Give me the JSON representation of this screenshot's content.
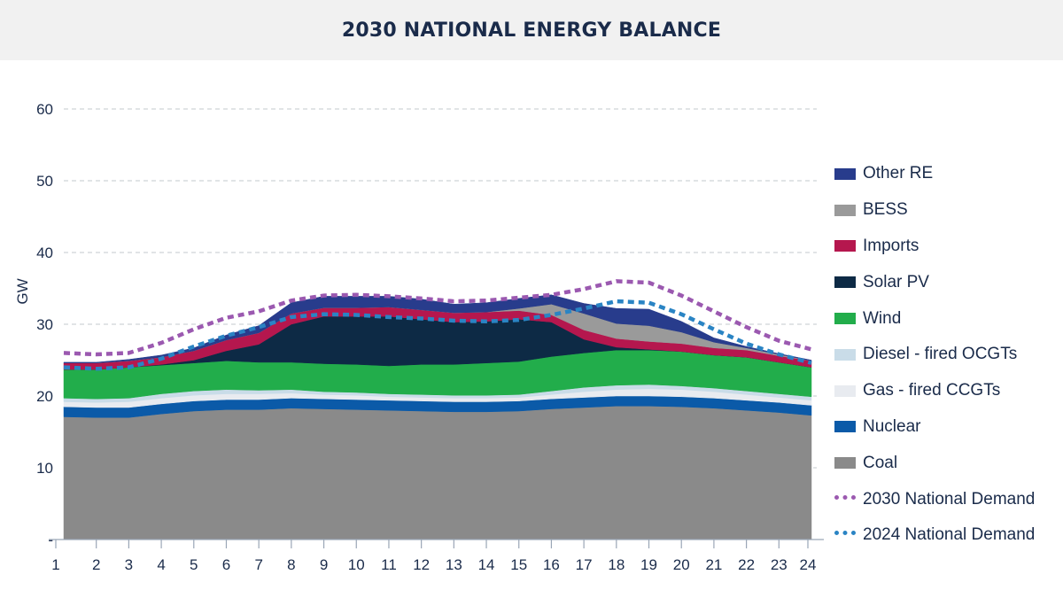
{
  "header": {
    "title": "2030 NATIONAL ENERGY BALANCE"
  },
  "chart_data": {
    "type": "area",
    "title": "2030 NATIONAL ENERGY BALANCE",
    "ylabel": "GW",
    "xlabel": "",
    "ylim": [
      0,
      60
    ],
    "yticks": [
      0,
      10,
      20,
      30,
      40,
      50,
      60
    ],
    "ytick_labels": [
      "-",
      "10",
      "20",
      "30",
      "40",
      "50",
      "60"
    ],
    "grid": true,
    "legend_position": "right",
    "x": [
      1,
      2,
      3,
      4,
      5,
      6,
      7,
      8,
      9,
      10,
      11,
      12,
      13,
      14,
      15,
      16,
      17,
      18,
      19,
      20,
      21,
      22,
      23,
      24
    ],
    "stacked_series": [
      {
        "name": "Coal",
        "color": "#8a8a8a",
        "values": [
          17.1,
          17.0,
          17.0,
          17.5,
          17.9,
          18.1,
          18.1,
          18.3,
          18.2,
          18.1,
          18.0,
          17.9,
          17.8,
          17.8,
          17.9,
          18.2,
          18.4,
          18.6,
          18.6,
          18.5,
          18.3,
          18.0,
          17.7,
          17.3
        ]
      },
      {
        "name": "Nuclear",
        "color": "#0b5aa8",
        "values": [
          1.4,
          1.4,
          1.4,
          1.4,
          1.4,
          1.4,
          1.4,
          1.4,
          1.4,
          1.4,
          1.4,
          1.4,
          1.4,
          1.4,
          1.4,
          1.4,
          1.4,
          1.4,
          1.4,
          1.4,
          1.4,
          1.4,
          1.4,
          1.4
        ]
      },
      {
        "name": "Gas - fired CCGTs",
        "color": "#e8ebf0",
        "values": [
          0.7,
          0.7,
          0.8,
          0.8,
          0.8,
          0.8,
          0.8,
          0.7,
          0.6,
          0.6,
          0.5,
          0.5,
          0.5,
          0.5,
          0.5,
          0.6,
          0.8,
          0.9,
          1.0,
          1.0,
          0.9,
          0.8,
          0.7,
          0.7
        ]
      },
      {
        "name": "Diesel - fired OCGTs",
        "color": "#c9dce8",
        "values": [
          0.5,
          0.5,
          0.5,
          0.6,
          0.6,
          0.6,
          0.5,
          0.5,
          0.4,
          0.4,
          0.4,
          0.4,
          0.4,
          0.4,
          0.4,
          0.5,
          0.6,
          0.6,
          0.6,
          0.5,
          0.5,
          0.5,
          0.5,
          0.5
        ]
      },
      {
        "name": "Wind",
        "color": "#22ad4b",
        "values": [
          4.0,
          4.1,
          4.3,
          4.0,
          3.9,
          4.0,
          3.9,
          3.8,
          3.9,
          3.9,
          3.9,
          4.2,
          4.3,
          4.5,
          4.6,
          4.8,
          4.8,
          4.9,
          4.8,
          4.8,
          4.6,
          4.7,
          4.4,
          4.1
        ]
      },
      {
        "name": "Solar PV",
        "color": "#0d2a45",
        "values": [
          0.0,
          0.0,
          0.0,
          0.1,
          0.4,
          1.4,
          2.5,
          5.3,
          6.6,
          6.7,
          6.9,
          6.3,
          5.9,
          5.8,
          5.9,
          4.8,
          1.9,
          0.4,
          0.1,
          0.0,
          0.0,
          0.0,
          0.0,
          0.0
        ]
      },
      {
        "name": "Imports",
        "color": "#b5174e",
        "values": [
          0.9,
          0.9,
          0.9,
          1.0,
          1.3,
          1.5,
          1.6,
          1.5,
          1.2,
          1.2,
          1.3,
          1.3,
          1.3,
          1.3,
          1.2,
          1.0,
          1.3,
          1.2,
          1.1,
          1.1,
          1.0,
          1.0,
          0.9,
          0.9
        ]
      },
      {
        "name": "BESS",
        "color": "#9a9a9a",
        "values": [
          0.0,
          0.0,
          0.0,
          0.0,
          0.0,
          0.0,
          0.0,
          0.0,
          0.0,
          0.0,
          0.0,
          0.0,
          0.0,
          0.0,
          0.3,
          1.5,
          2.3,
          2.1,
          2.2,
          1.6,
          0.8,
          0.3,
          0.2,
          0.0
        ]
      },
      {
        "name": "Other RE",
        "color": "#283c8c",
        "values": [
          0.1,
          0.1,
          0.2,
          0.3,
          0.4,
          0.7,
          1.0,
          1.5,
          1.6,
          1.6,
          1.5,
          1.5,
          1.2,
          1.3,
          1.4,
          1.3,
          1.4,
          2.1,
          2.3,
          1.5,
          0.6,
          0.2,
          0.1,
          0.1
        ]
      }
    ],
    "line_series": [
      {
        "name": "2030 National Demand",
        "color": "#9b59b0",
        "values": [
          26.0,
          25.8,
          26.0,
          27.4,
          29.3,
          30.9,
          31.8,
          33.3,
          34.0,
          34.1,
          33.9,
          33.6,
          33.2,
          33.3,
          33.7,
          34.1,
          34.9,
          36.0,
          35.8,
          34.0,
          31.8,
          29.6,
          27.7,
          26.5
        ]
      },
      {
        "name": "2024 National Demand",
        "color": "#2a84c4",
        "values": [
          24.0,
          23.8,
          24.0,
          25.2,
          26.9,
          28.4,
          29.6,
          31.0,
          31.4,
          31.3,
          31.0,
          30.8,
          30.5,
          30.4,
          30.6,
          31.3,
          32.2,
          33.2,
          33.0,
          31.4,
          29.3,
          27.3,
          25.8,
          24.6
        ]
      }
    ]
  },
  "legend": [
    {
      "label": "Other RE",
      "color": "#283c8c",
      "style": "fill"
    },
    {
      "label": "BESS",
      "color": "#9a9a9a",
      "style": "fill"
    },
    {
      "label": "Imports",
      "color": "#b5174e",
      "style": "fill"
    },
    {
      "label": "Solar PV",
      "color": "#0d2a45",
      "style": "fill"
    },
    {
      "label": "Wind",
      "color": "#22ad4b",
      "style": "fill"
    },
    {
      "label": "Diesel - fired OCGTs",
      "color": "#c9dce8",
      "style": "fill"
    },
    {
      "label": "Gas - fired CCGTs",
      "color": "#e8ebf0",
      "style": "fill"
    },
    {
      "label": "Nuclear",
      "color": "#0b5aa8",
      "style": "fill"
    },
    {
      "label": "Coal",
      "color": "#8a8a8a",
      "style": "fill"
    },
    {
      "label": "2030 National Demand",
      "color": "#9b59b0",
      "style": "dash"
    },
    {
      "label": "2024 National Demand",
      "color": "#2a84c4",
      "style": "dash"
    }
  ]
}
